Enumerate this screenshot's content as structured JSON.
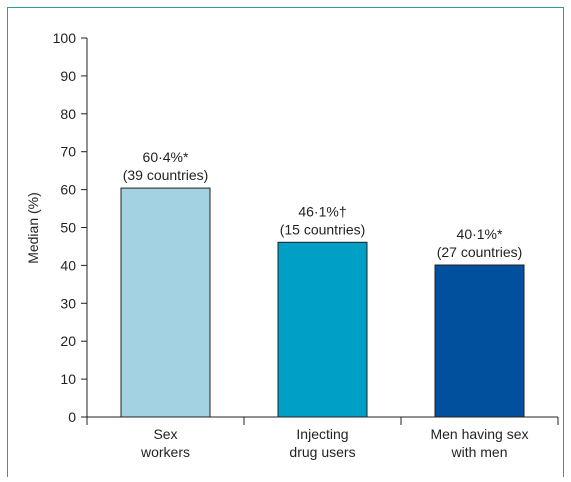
{
  "chart_data": {
    "type": "bar",
    "ylabel": "Median (%)",
    "ylim": [
      0,
      100
    ],
    "yticks": [
      0,
      10,
      20,
      30,
      40,
      50,
      60,
      70,
      80,
      90,
      100
    ],
    "grid": false,
    "categories": [
      [
        "Sex",
        "workers"
      ],
      [
        "Injecting",
        "drug users"
      ],
      [
        "Men having sex",
        "with men"
      ]
    ],
    "values": [
      60.4,
      46.1,
      40.1
    ],
    "value_labels": [
      "60·4%*",
      "46·1%†",
      "40·1%*"
    ],
    "sub_labels": [
      "(39 countries)",
      "(15 countries)",
      "(27 countries)"
    ],
    "colors": [
      "#a3d3e3",
      "#00a0c6",
      "#00509e"
    ],
    "frame_color": "#2e9ba0"
  }
}
